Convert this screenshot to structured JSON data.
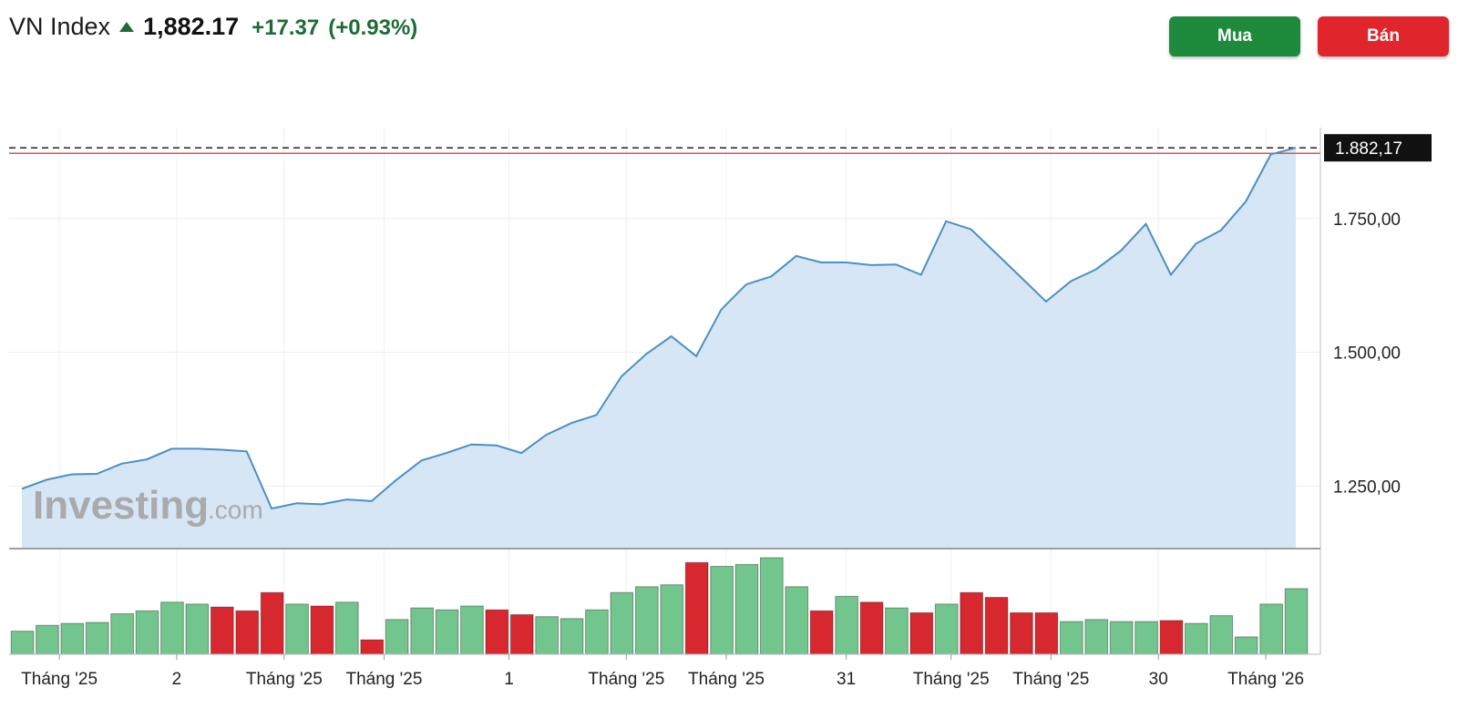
{
  "header": {
    "index_name": "VN Index",
    "value": "1,882.17",
    "change": "+17.37",
    "change_pct": "(+0.93%)",
    "up_color": "#1e6b35"
  },
  "buttons": {
    "buy_label": "Mua",
    "sell_label": "Bán",
    "buy_color": "#1d8a3c",
    "sell_color": "#e0262c"
  },
  "watermark": {
    "brand": "Investing",
    "suffix": ".com"
  },
  "chart_data": {
    "type": "area",
    "y_axis": {
      "ticks": [
        1250,
        1500,
        1750
      ],
      "tick_labels": [
        "1.250,00",
        "1.500,00",
        "1.750,00"
      ],
      "range": [
        1135,
        1920
      ],
      "position": "right"
    },
    "last_value_label": "1.882,17",
    "last_value": 1882.17,
    "x_tick_labels": [
      "Tháng '25",
      "2",
      "Tháng '25",
      "Tháng '25",
      "1",
      "Tháng '25",
      "Tháng '25",
      "31",
      "Tháng '25",
      "Tháng '25",
      "30",
      "Tháng '26"
    ],
    "x_tick_positions": [
      1.5,
      6.2,
      10.5,
      14.5,
      19.5,
      24.2,
      28.2,
      33,
      37.2,
      41.2,
      45.5,
      49.8
    ],
    "price": [
      1245,
      1262,
      1272,
      1273,
      1292,
      1300,
      1320,
      1320,
      1318,
      1315,
      1208,
      1218,
      1216,
      1225,
      1222,
      1262,
      1298,
      1312,
      1328,
      1326,
      1312,
      1346,
      1368,
      1383,
      1455,
      1497,
      1530,
      1493,
      1580,
      1627,
      1642,
      1680,
      1668,
      1668,
      1663,
      1664,
      1645,
      1745,
      1730,
      1685,
      1640,
      1595,
      1633,
      1655,
      1690,
      1740,
      1645,
      1703,
      1728,
      1782,
      1870,
      1882.17
    ],
    "volume": [
      24,
      30,
      32,
      33,
      42,
      45,
      54,
      52,
      49,
      45,
      64,
      52,
      50,
      54,
      15,
      36,
      48,
      46,
      50,
      46,
      41,
      39,
      37,
      46,
      64,
      70,
      72,
      95,
      91,
      93,
      100,
      70,
      45,
      60,
      54,
      48,
      43,
      52,
      64,
      59,
      43,
      43,
      34,
      36,
      34,
      34,
      35,
      32,
      40,
      18,
      52,
      68
    ],
    "volume_direction": [
      "up",
      "up",
      "up",
      "up",
      "up",
      "up",
      "up",
      "up",
      "down",
      "down",
      "down",
      "up",
      "down",
      "up",
      "down",
      "up",
      "up",
      "up",
      "up",
      "down",
      "down",
      "up",
      "up",
      "up",
      "up",
      "up",
      "up",
      "down",
      "up",
      "up",
      "up",
      "up",
      "down",
      "up",
      "down",
      "up",
      "down",
      "up",
      "down",
      "down",
      "down",
      "down",
      "up",
      "up",
      "up",
      "up",
      "down",
      "up",
      "up",
      "up",
      "up",
      "up"
    ],
    "colors": {
      "line": "#4a90c4",
      "area": "#d6e6f5",
      "vol_up": "#72c58c",
      "vol_down": "#d7282f",
      "last_line": "#e05353",
      "label_bg": "#111111"
    },
    "grid": true
  }
}
